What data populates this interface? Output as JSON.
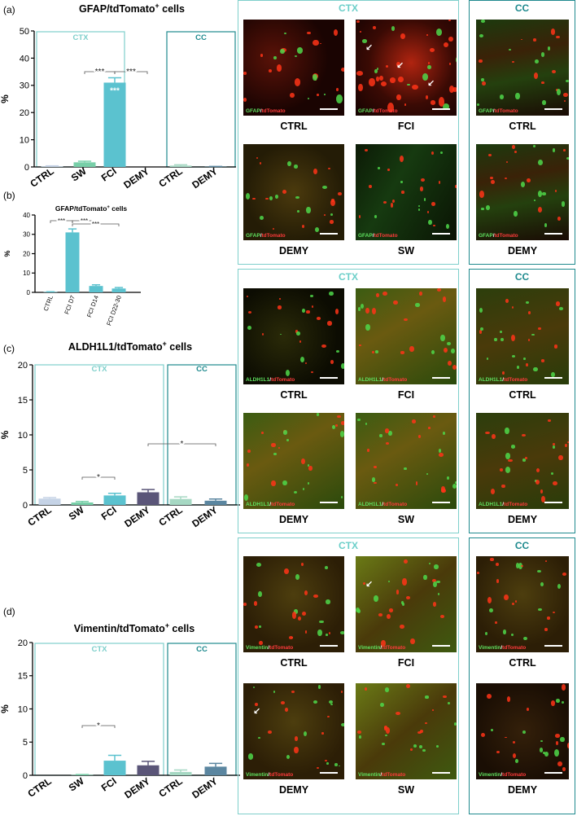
{
  "panel_labels": {
    "a": "(a)",
    "b": "(b)",
    "c": "(c)",
    "d": "(d)"
  },
  "colors": {
    "ctx_frame": "#7ecfcb",
    "cc_frame": "#1f8a8e",
    "fci_bar": "#5bc2cf",
    "demy_bar": "#5a5578"
  },
  "chart_data": [
    {
      "id": "a",
      "type": "bar",
      "title": "GFAP/tdTomato+ cells",
      "ylabel": "%",
      "ylim": [
        0,
        50
      ],
      "yticks": [
        0,
        10,
        20,
        30,
        40,
        50
      ],
      "region_labels": [
        "CTX",
        "CC"
      ],
      "categories": [
        "CTRL",
        "SW",
        "FCI",
        "DEMY",
        "CTRL",
        "DEMY"
      ],
      "values": [
        0.2,
        1.7,
        31.0,
        0,
        0.5,
        0.1
      ],
      "errors": [
        0.2,
        0.4,
        1.8,
        0,
        0.3,
        0.1
      ],
      "bar_colors": [
        "#c5d3e6",
        "#77cfa8",
        "#5bc2cf",
        "#5a5578",
        "#a6d8c3",
        "#5b86a0"
      ],
      "significance": [
        {
          "from": 1,
          "to": 2,
          "label": "***"
        },
        {
          "from": 2,
          "to": 3,
          "label": "***"
        },
        {
          "at": 2,
          "label": "***",
          "inside": true
        }
      ]
    },
    {
      "id": "b",
      "type": "bar",
      "title": "GFAP/tdTomato+ cells",
      "ylabel": "%",
      "ylim": [
        0,
        40
      ],
      "yticks": [
        0,
        10,
        20,
        30,
        40
      ],
      "categories": [
        "CTRL",
        "FCI D7",
        "FCI D14",
        "FCI D22-30"
      ],
      "values": [
        0.2,
        31.0,
        3.3,
        2.0
      ],
      "errors": [
        0.1,
        1.8,
        0.6,
        0.5
      ],
      "bar_colors": [
        "#5bc2cf",
        "#5bc2cf",
        "#5bc2cf",
        "#5bc2cf"
      ],
      "significance": [
        {
          "from": 0,
          "to": 1,
          "label": "***"
        },
        {
          "from": 1,
          "to": 2,
          "label": "***"
        },
        {
          "from": 1,
          "to": 3,
          "label": "***"
        }
      ]
    },
    {
      "id": "c",
      "type": "bar",
      "title": "ALDH1L1/tdTomato+ cells",
      "ylabel": "%",
      "ylim": [
        0,
        20
      ],
      "yticks": [
        0,
        5,
        10,
        15,
        20
      ],
      "region_labels": [
        "CTX",
        "CC"
      ],
      "categories": [
        "CTRL",
        "SW",
        "FCI",
        "DEMY",
        "CTRL",
        "DEMY"
      ],
      "values": [
        0.9,
        0.35,
        1.35,
        1.8,
        0.85,
        0.6
      ],
      "errors": [
        0.15,
        0.15,
        0.3,
        0.4,
        0.3,
        0.25
      ],
      "bar_colors": [
        "#c5d3e6",
        "#77cfa8",
        "#5bc2cf",
        "#5a5578",
        "#a6d8c3",
        "#5b86a0"
      ],
      "significance": [
        {
          "from": 1,
          "to": 2,
          "label": "*"
        },
        {
          "from": 3,
          "to": 5,
          "label": "*"
        }
      ]
    },
    {
      "id": "d",
      "type": "bar",
      "title": "Vimentin/tdTomato+ cells",
      "ylabel": "%",
      "ylim": [
        0,
        20
      ],
      "yticks": [
        0,
        5,
        10,
        15,
        20
      ],
      "region_labels": [
        "CTX",
        "CC"
      ],
      "categories": [
        "CTRL",
        "SW",
        "FCI",
        "DEMY",
        "CTRL",
        "DEMY"
      ],
      "values": [
        0,
        0.05,
        2.2,
        1.5,
        0.5,
        1.3
      ],
      "errors": [
        0,
        0.05,
        0.8,
        0.6,
        0.3,
        0.5
      ],
      "bar_colors": [
        "#c5d3e6",
        "#77cfa8",
        "#5bc2cf",
        "#5a5578",
        "#a6d8c3",
        "#5b86a0"
      ],
      "significance": [
        {
          "from": 1,
          "to": 2,
          "label": "*"
        }
      ]
    }
  ],
  "micrographs": {
    "region_ctx": "CTX",
    "region_cc": "CC",
    "rows": [
      {
        "marker": "GFAP",
        "reporter": "tdTomato",
        "images": [
          {
            "label": "CTRL",
            "theme": "red"
          },
          {
            "label": "FCI",
            "theme": "red_dense",
            "arrows": 3
          },
          {
            "label": "CTRL",
            "theme": "fiber"
          },
          {
            "label": "DEMY",
            "theme": "mixed"
          },
          {
            "label": "SW",
            "theme": "fiber_dark"
          },
          {
            "label": "DEMY",
            "theme": "fiber"
          }
        ]
      },
      {
        "marker": "ALDH1L1",
        "reporter": "tdTomato",
        "images": [
          {
            "label": "CTRL",
            "theme": "green_sparse"
          },
          {
            "label": "FCI",
            "theme": "green_dense"
          },
          {
            "label": "CTRL",
            "theme": "green_fiber"
          },
          {
            "label": "DEMY",
            "theme": "green_dense"
          },
          {
            "label": "SW",
            "theme": "green_dense"
          },
          {
            "label": "DEMY",
            "theme": "green_fiber"
          }
        ]
      },
      {
        "marker": "Vimentin",
        "reporter": "tdTomato",
        "images": [
          {
            "label": "CTRL",
            "theme": "olive"
          },
          {
            "label": "FCI",
            "theme": "olive_bright",
            "arrows": 1
          },
          {
            "label": "CTRL",
            "theme": "olive"
          },
          {
            "label": "DEMY",
            "theme": "olive",
            "arrows": 1
          },
          {
            "label": "SW",
            "theme": "olive_bright"
          },
          {
            "label": "DEMY",
            "theme": "olive_dark"
          }
        ]
      }
    ]
  }
}
